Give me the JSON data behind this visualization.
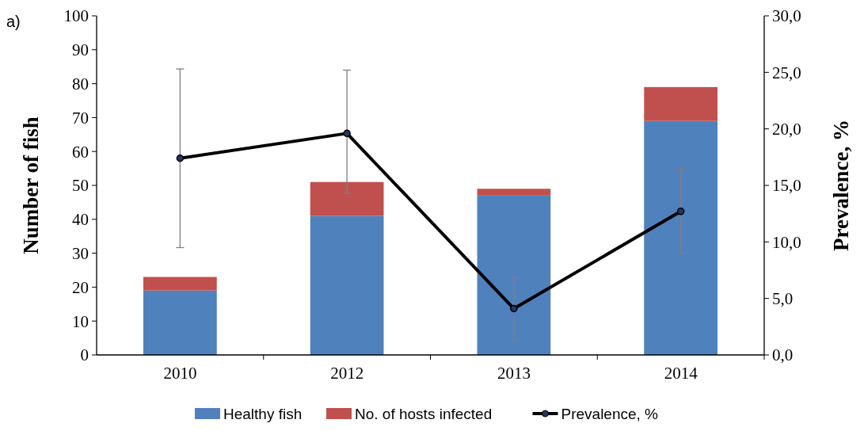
{
  "chart_data": {
    "type": "bar",
    "stacked": true,
    "categories": [
      "2010",
      "2012",
      "2013",
      "2014"
    ],
    "series": [
      {
        "name": "Healthy fish",
        "color": "#4f81bd",
        "values": [
          19,
          41,
          47,
          69
        ]
      },
      {
        "name": "No. of hosts infected",
        "color": "#c0504d",
        "values": [
          4,
          10,
          2,
          10
        ]
      },
      {
        "name": "Prevalence, %",
        "type": "line",
        "axis": "y2",
        "color": "#000000",
        "marker": "circle",
        "line_style": "solid",
        "values": [
          17.4,
          19.6,
          4.1,
          12.7
        ],
        "errors": [
          [
            9.5,
            25.3
          ],
          [
            14.3,
            25.2
          ],
          [
            1.35,
            6.9
          ],
          [
            9.0,
            16.5
          ]
        ]
      }
    ],
    "ylabel": "Number of fish",
    "y2label": "Prevalence, %",
    "ylim": [
      0,
      100
    ],
    "yticks": [
      0,
      10,
      20,
      30,
      40,
      50,
      60,
      70,
      80,
      90,
      100
    ],
    "y2lim": [
      0,
      30
    ],
    "y2ticks": [
      {
        "value": 0,
        "label": "0,0"
      },
      {
        "value": 5,
        "label": "5,0"
      },
      {
        "value": 10,
        "label": "10,0"
      },
      {
        "value": 15,
        "label": "15,0"
      },
      {
        "value": 20,
        "label": "20,0"
      },
      {
        "value": 25,
        "label": "25,0"
      },
      {
        "value": 30,
        "label": "30,0"
      }
    ],
    "grid": false,
    "legend": "bottom",
    "annotations": [
      "a)"
    ]
  }
}
